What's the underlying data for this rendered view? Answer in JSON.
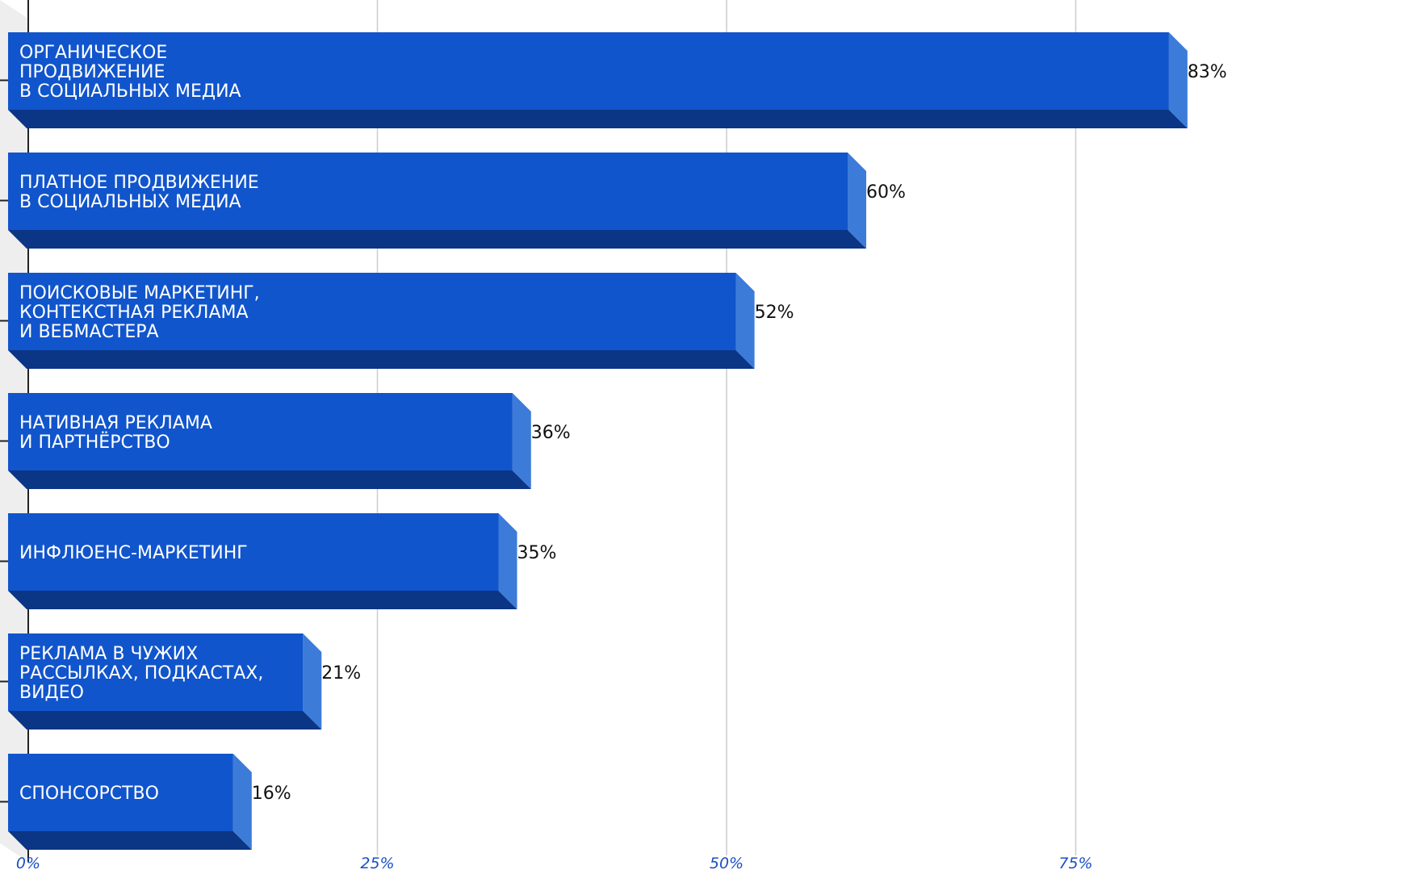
{
  "chart_data": {
    "type": "bar",
    "orientation": "horizontal",
    "style": "3d",
    "categories": [
      [
        "ОРГАНИЧЕСКОЕ",
        "ПРОДВИЖЕНИЕ",
        "В СОЦИАЛЬНЫХ МЕДИА"
      ],
      [
        "ПЛАТНОЕ ПРОДВИЖЕНИЕ",
        "В СОЦИАЛЬНЫХ МЕДИА"
      ],
      [
        "ПОИСКОВЫЕ МАРКЕТИНГ,",
        "КОНТЕКСТНАЯ РЕКЛАМА",
        "И ВЕБМАСТЕРА"
      ],
      [
        "НАТИВНАЯ РЕКЛАМА",
        "И ПАРТНЁРСТВО"
      ],
      [
        "ИНФЛЮЕНС-МАРКЕТИНГ"
      ],
      [
        "РЕКЛАМА В ЧУЖИХ",
        "РАССЫЛКАХ, ПОДКАСТАХ,",
        "ВИДЕО"
      ],
      [
        "СПОНСОРСТВО"
      ]
    ],
    "values": [
      83,
      60,
      52,
      36,
      35,
      21,
      16
    ],
    "value_labels": [
      "83%",
      "60%",
      "52%",
      "36%",
      "35%",
      "21%",
      "16%"
    ],
    "xlim": [
      0,
      100
    ],
    "xticks": [
      0,
      25,
      50,
      75
    ],
    "xtick_labels": [
      "0%",
      "25%",
      "50%",
      "75%"
    ],
    "title": "",
    "xlabel": "",
    "ylabel": "",
    "grid": true,
    "legend": "none",
    "colors": {
      "bar_front": "#1155cc",
      "bar_bottom": "#0b3585",
      "bar_side": "#3d7bd9",
      "grid": "#cccccc",
      "axis": "#222222",
      "wall": "#eeeeee",
      "tick_label": "#1a4fc4",
      "value_label": "#111111",
      "category_label": "#ffffff"
    }
  }
}
